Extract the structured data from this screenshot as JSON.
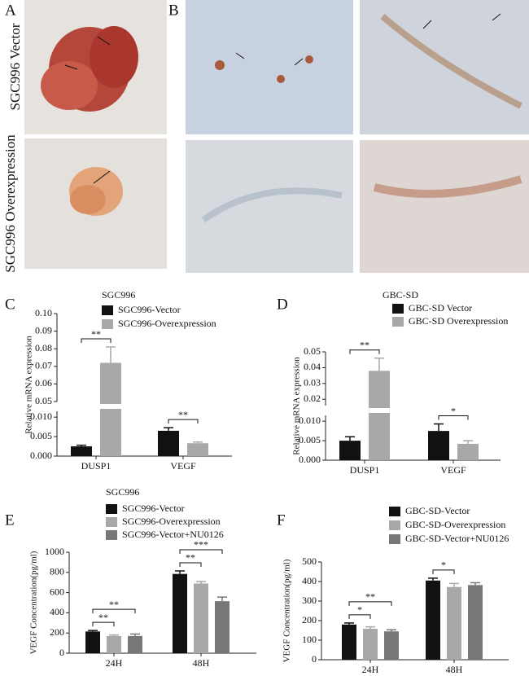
{
  "figure": {
    "A": {
      "label": "A",
      "rows": [
        "SGC996 Vector",
        "SGC996 Overexpression"
      ]
    },
    "B": {
      "label": "B"
    }
  },
  "chart_data": [
    {
      "type": "bar",
      "panel": "C",
      "title": "SGC996",
      "ylabel": "Relative mRNA expression",
      "categories": [
        "DUSP1",
        "VEGF"
      ],
      "series": [
        {
          "name": "SGC996-Vector",
          "color": "#111111",
          "values": [
            0.0025,
            0.0065
          ],
          "errors": [
            0.0003,
            0.0008
          ]
        },
        {
          "name": "SGC996-Overexpression",
          "color": "#a8a8a8",
          "values": [
            0.072,
            0.0033
          ],
          "errors": [
            0.009,
            0.0003
          ]
        }
      ],
      "ylim": [
        0,
        0.1
      ],
      "ybreak": [
        0.0115,
        0.05
      ],
      "yticks": [
        {
          "value": 0,
          "label": "0.000"
        },
        0.005,
        {
          "value": 0.01,
          "label": "0.010"
        },
        0.05,
        0.06,
        0.07,
        0.08,
        0.09,
        {
          "value": 0.1,
          "label": "0.10"
        }
      ],
      "significance": [
        {
          "label": "**",
          "category": 0,
          "series": [
            0,
            1
          ]
        },
        {
          "label": "**",
          "category": 1,
          "series": [
            0,
            1
          ]
        }
      ]
    },
    {
      "type": "bar",
      "panel": "D",
      "title": "GBC-SD",
      "ylabel": "Relative mRNA expression",
      "categories": [
        "DUSP1",
        "VEGF"
      ],
      "series": [
        {
          "name": "GBC-SD Vector",
          "color": "#111111",
          "values": [
            0.005,
            0.0075
          ],
          "errors": [
            0.001,
            0.0018
          ]
        },
        {
          "name": "GBC-SD Overexpression",
          "color": "#a8a8a8",
          "values": [
            0.038,
            0.0042
          ],
          "errors": [
            0.008,
            0.0008
          ]
        }
      ],
      "ylim": [
        0,
        0.05
      ],
      "ybreak": [
        0.0115,
        0.016
      ],
      "yticks": [
        {
          "value": 0,
          "label": "0.000"
        },
        0.005,
        {
          "value": 0.01,
          "label": "0.010"
        },
        0.02,
        0.03,
        0.04,
        0.05
      ],
      "significance": [
        {
          "label": "**",
          "category": 0,
          "series": [
            0,
            1
          ]
        },
        {
          "label": "*",
          "category": 1,
          "series": [
            0,
            1
          ]
        }
      ]
    },
    {
      "type": "bar",
      "panel": "E",
      "title": "SGC996",
      "ylabel": "VEGF Concentration(pg/ml)",
      "categories": [
        "24H",
        "48H"
      ],
      "series": [
        {
          "name": "SGC996-Vector",
          "color": "#111111",
          "values": [
            215,
            785
          ],
          "errors": [
            10,
            30
          ]
        },
        {
          "name": "SGC996-Overexpression",
          "color": "#a8a8a8",
          "values": [
            170,
            690
          ],
          "errors": [
            10,
            20
          ]
        },
        {
          "name": "SGC996-Vector+NU0126",
          "color": "#777777",
          "values": [
            170,
            515
          ],
          "errors": [
            20,
            40
          ]
        }
      ],
      "ylim": [
        0,
        1000
      ],
      "yticks": [
        0,
        200,
        400,
        600,
        800,
        1000
      ],
      "significance": [
        {
          "label": "**",
          "category": 0,
          "series": [
            0,
            1
          ]
        },
        {
          "label": "**",
          "category": 0,
          "series": [
            0,
            2
          ]
        },
        {
          "label": "**",
          "category": 1,
          "series": [
            0,
            1
          ]
        },
        {
          "label": "***",
          "category": 1,
          "series": [
            0,
            2
          ]
        }
      ]
    },
    {
      "type": "bar",
      "panel": "F",
      "ylabel": "VEGF Concentration(pg/ml)",
      "categories": [
        "24H",
        "48H"
      ],
      "series": [
        {
          "name": "GBC-SD-Vector",
          "color": "#111111",
          "values": [
            180,
            405
          ],
          "errors": [
            8,
            12
          ]
        },
        {
          "name": "GBC-SD-Overexpression",
          "color": "#a8a8a8",
          "values": [
            158,
            372
          ],
          "errors": [
            10,
            18
          ]
        },
        {
          "name": "GBC-SD-Vector+NU0126",
          "color": "#777777",
          "values": [
            145,
            382
          ],
          "errors": [
            8,
            12
          ]
        }
      ],
      "ylim": [
        0,
        500
      ],
      "yticks": [
        0,
        100,
        200,
        300,
        400,
        500
      ],
      "significance": [
        {
          "label": "*",
          "category": 0,
          "series": [
            0,
            1
          ]
        },
        {
          "label": "**",
          "category": 0,
          "series": [
            0,
            2
          ]
        },
        {
          "label": "*",
          "category": 1,
          "series": [
            0,
            1
          ]
        }
      ]
    }
  ]
}
